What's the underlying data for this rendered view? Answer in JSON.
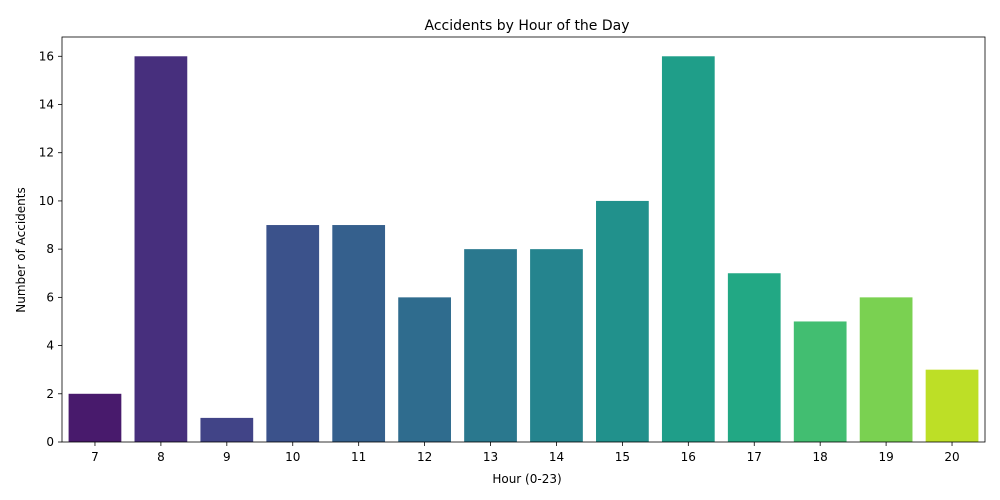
{
  "chart_data": {
    "type": "bar",
    "title": "Accidents by Hour of the Day",
    "xlabel": "Hour (0-23)",
    "ylabel": "Number of Accidents",
    "categories": [
      "7",
      "8",
      "9",
      "10",
      "11",
      "12",
      "13",
      "14",
      "15",
      "16",
      "17",
      "18",
      "19",
      "20"
    ],
    "values": [
      2,
      16,
      1,
      9,
      9,
      6,
      8,
      8,
      10,
      16,
      7,
      5,
      6,
      3
    ],
    "colors": [
      "#481a6c",
      "#472f7d",
      "#414487",
      "#3b528b",
      "#35608d",
      "#2f6c8e",
      "#2a788e",
      "#25848e",
      "#21918c",
      "#1f9e89",
      "#22a884",
      "#42be71",
      "#7ad151",
      "#bddf26"
    ],
    "yticks": [
      0,
      2,
      4,
      6,
      8,
      10,
      12,
      14,
      16
    ],
    "ylim": [
      0,
      16.8
    ],
    "grid": false,
    "legend": "none"
  }
}
